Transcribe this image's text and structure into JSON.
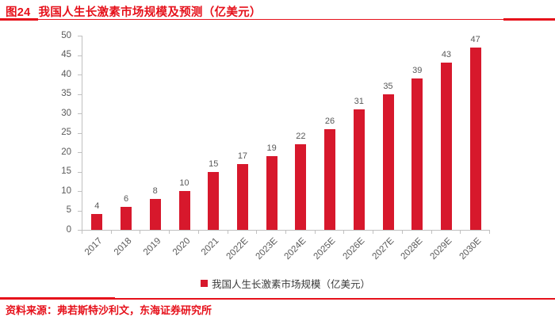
{
  "header": {
    "figure_label": "图24",
    "title": "我国人生长激素市场规模及预测（亿美元）"
  },
  "chart_data": {
    "type": "bar",
    "title": "我国人生长激素市场规模及预测（亿美元）",
    "categories": [
      "2017",
      "2018",
      "2019",
      "2020",
      "2021",
      "2022E",
      "2023E",
      "2024E",
      "2025E",
      "2026E",
      "2027E",
      "2028E",
      "2029E",
      "2030E"
    ],
    "values": [
      4,
      6,
      8,
      10,
      15,
      17,
      19,
      22,
      26,
      31,
      35,
      39,
      43,
      47
    ],
    "series_name": "我国人生长激素市场规模（亿美元）",
    "xlabel": "",
    "ylabel": "",
    "ylim": [
      0,
      50
    ],
    "yticks": [
      0,
      5,
      10,
      15,
      20,
      25,
      30,
      35,
      40,
      45,
      50
    ],
    "grid": false,
    "data_labels": true,
    "legend_position": "bottom",
    "bar_color": "#d7182c"
  },
  "legend": {
    "label": "我国人生长激素市场规模（亿美元）"
  },
  "footer": {
    "source": "资料来源：弗若斯特沙利文，东海证券研究所"
  },
  "colors": {
    "accent_red": "#e6111b",
    "bar_red": "#d7182c",
    "axis_gray": "#c0c0c0",
    "tick_label_gray": "#595959",
    "legend_text": "#3a3a3a"
  }
}
